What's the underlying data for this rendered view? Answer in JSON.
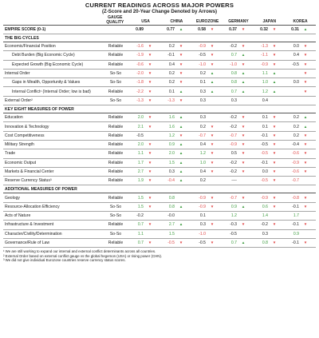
{
  "title": "CURRENT READINGS ACROSS MAJOR POWERS",
  "subtitle": "(Z-Score and 20-Year Change Denoted by Arrows)",
  "columns": {
    "quality": "GAUGE QUALITY",
    "countries": [
      "USA",
      "CHINA",
      "EUROZONE",
      "GERMANY",
      "JAPAN",
      "KOREA"
    ]
  },
  "colors": {
    "positive": "#3c9b3e",
    "negative": "#e04848",
    "flat": "#e8b91c"
  },
  "rows": [
    {
      "kind": "empire",
      "label": "EMPIRE SCORE (0-1)",
      "quality": "",
      "cells": [
        {
          "v": "0.89",
          "t": "neu",
          "a": ""
        },
        {
          "v": "0.77",
          "t": "neu",
          "a": "up"
        },
        {
          "v": "0.58",
          "t": "neu",
          "a": "down"
        },
        {
          "v": "0.37",
          "t": "neu",
          "a": "down"
        },
        {
          "v": "0.32",
          "t": "neu",
          "a": "down"
        },
        {
          "v": "0.31",
          "t": "neu",
          "a": "up"
        }
      ]
    },
    {
      "kind": "section",
      "label": "THE BIG CYCLES"
    },
    {
      "kind": "row",
      "label": "Economic/Financial Position",
      "quality": "Reliable",
      "cells": [
        {
          "v": "-1.6",
          "t": "neg",
          "a": "down"
        },
        {
          "v": "0.2",
          "t": "neu",
          "a": "down"
        },
        {
          "v": "-0.9",
          "t": "neg",
          "a": "down"
        },
        {
          "v": "-0.2",
          "t": "neu",
          "a": "down"
        },
        {
          "v": "-1.3",
          "t": "neg",
          "a": "down"
        },
        {
          "v": "0.0",
          "t": "neu",
          "a": "down"
        }
      ]
    },
    {
      "kind": "row",
      "sub": true,
      "label": "Debt Burden (Big Economic Cycle)",
      "quality": "Reliable",
      "cells": [
        {
          "v": "-1.9",
          "t": "neg",
          "a": "down"
        },
        {
          "v": "-0.1",
          "t": "neu",
          "a": "down"
        },
        {
          "v": "-0.5",
          "t": "neu",
          "a": "down"
        },
        {
          "v": "0.7",
          "t": "pos",
          "a": "up"
        },
        {
          "v": "-1.1",
          "t": "neg",
          "a": "down"
        },
        {
          "v": "0.4",
          "t": "neu",
          "a": "down"
        }
      ]
    },
    {
      "kind": "row",
      "sub": true,
      "label": "Expected Growth (Big Economic Cycle)",
      "quality": "Reliable",
      "cells": [
        {
          "v": "-0.6",
          "t": "neg",
          "a": "down"
        },
        {
          "v": "0.4",
          "t": "neu",
          "a": "down"
        },
        {
          "v": "-1.0",
          "t": "neg",
          "a": "down"
        },
        {
          "v": "-1.0",
          "t": "neg",
          "a": "down"
        },
        {
          "v": "-0.9",
          "t": "neg",
          "a": "down"
        },
        {
          "v": "-0.5",
          "t": "neu",
          "a": "down"
        }
      ]
    },
    {
      "kind": "row",
      "label": "Internal Order",
      "quality": "So-So",
      "cells": [
        {
          "v": "-2.0",
          "t": "neg",
          "a": "down"
        },
        {
          "v": "0.2",
          "t": "neu",
          "a": "down"
        },
        {
          "v": "0.2",
          "t": "neu",
          "a": "up"
        },
        {
          "v": "0.8",
          "t": "pos",
          "a": "up"
        },
        {
          "v": "1.1",
          "t": "pos",
          "a": "up"
        },
        {
          "v": "",
          "t": "neu",
          "a": "down"
        }
      ]
    },
    {
      "kind": "row",
      "sub": true,
      "label": "Gaps in Wealth, Opportunity & Values",
      "quality": "So-So",
      "cells": [
        {
          "v": "-1.8",
          "t": "neg",
          "a": "down"
        },
        {
          "v": "0.2",
          "t": "neu",
          "a": "down"
        },
        {
          "v": "0.1",
          "t": "neu",
          "a": "up"
        },
        {
          "v": "0.8",
          "t": "pos",
          "a": "up"
        },
        {
          "v": "1.0",
          "t": "pos",
          "a": "up"
        },
        {
          "v": "0.0",
          "t": "neu",
          "a": "down"
        }
      ]
    },
    {
      "kind": "row",
      "sub": true,
      "label": "Internal Conflict¹ (Internal Order; low is bad)",
      "quality": "Reliable",
      "cells": [
        {
          "v": "-2.2",
          "t": "neg",
          "a": "down"
        },
        {
          "v": "0.1",
          "t": "neu",
          "a": "up"
        },
        {
          "v": "0.3",
          "t": "neu",
          "a": "up"
        },
        {
          "v": "0.7",
          "t": "pos",
          "a": "up"
        },
        {
          "v": "1.2",
          "t": "pos",
          "a": "up"
        },
        {
          "v": "",
          "t": "neu",
          "a": "down"
        }
      ]
    },
    {
      "kind": "row",
      "label": "External Order²",
      "quality": "So-So",
      "cells": [
        {
          "v": "-1.3",
          "t": "neg",
          "a": "down"
        },
        {
          "v": "-1.3",
          "t": "neg",
          "a": "down"
        },
        {
          "v": "0.3",
          "t": "neu",
          "a": ""
        },
        {
          "v": "0.3",
          "t": "neu",
          "a": ""
        },
        {
          "v": "0.4",
          "t": "neu",
          "a": ""
        },
        {
          "v": "",
          "t": "neu",
          "a": ""
        }
      ]
    },
    {
      "kind": "section",
      "label": "KEY EIGHT MEASURES OF POWER"
    },
    {
      "kind": "row",
      "label": "Education",
      "quality": "Reliable",
      "cells": [
        {
          "v": "2.0",
          "t": "pos",
          "a": "down"
        },
        {
          "v": "1.6",
          "t": "pos",
          "a": "up"
        },
        {
          "v": "0.3",
          "t": "neu",
          "a": ""
        },
        {
          "v": "-0.2",
          "t": "neu",
          "a": "down"
        },
        {
          "v": "0.1",
          "t": "neu",
          "a": "down"
        },
        {
          "v": "0.2",
          "t": "neu",
          "a": "up"
        }
      ]
    },
    {
      "kind": "row",
      "label": "Innovation & Technology",
      "quality": "Reliable",
      "cells": [
        {
          "v": "2.1",
          "t": "pos",
          "a": "down"
        },
        {
          "v": "1.6",
          "t": "pos",
          "a": "up"
        },
        {
          "v": "0.2",
          "t": "neu",
          "a": "down"
        },
        {
          "v": "-0.2",
          "t": "neu",
          "a": "down"
        },
        {
          "v": "0.1",
          "t": "neu",
          "a": "down"
        },
        {
          "v": "0.2",
          "t": "neu",
          "a": "up"
        }
      ]
    },
    {
      "kind": "row",
      "label": "Cost Competitiveness",
      "quality": "Reliable",
      "cells": [
        {
          "v": "-0.5",
          "t": "neu",
          "a": ""
        },
        {
          "v": "1.2",
          "t": "pos",
          "a": "down"
        },
        {
          "v": "-0.7",
          "t": "neg",
          "a": "down"
        },
        {
          "v": "-0.7",
          "t": "neg",
          "a": "down"
        },
        {
          "v": "-0.1",
          "t": "neu",
          "a": "down"
        },
        {
          "v": "0.2",
          "t": "neu",
          "a": "down"
        }
      ]
    },
    {
      "kind": "row",
      "label": "Military Strength",
      "quality": "Reliable",
      "cells": [
        {
          "v": "2.0",
          "t": "pos",
          "a": "down"
        },
        {
          "v": "0.9",
          "t": "pos",
          "a": "up"
        },
        {
          "v": "0.4",
          "t": "neu",
          "a": "down"
        },
        {
          "v": "-0.9",
          "t": "neg",
          "a": "down"
        },
        {
          "v": "-0.5",
          "t": "neu",
          "a": "down"
        },
        {
          "v": "-0.4",
          "t": "neu",
          "a": "down"
        }
      ]
    },
    {
      "kind": "row",
      "label": "Trade",
      "quality": "Reliable",
      "cells": [
        {
          "v": "1.1",
          "t": "pos",
          "a": "down"
        },
        {
          "v": "2.0",
          "t": "pos",
          "a": "up"
        },
        {
          "v": "1.2",
          "t": "pos",
          "a": "down"
        },
        {
          "v": "0.5",
          "t": "neu",
          "a": "down"
        },
        {
          "v": "-0.5",
          "t": "neg",
          "a": "down"
        },
        {
          "v": "-0.6",
          "t": "neg",
          "a": "down"
        }
      ]
    },
    {
      "kind": "row",
      "label": "Economic Output",
      "quality": "Reliable",
      "cells": [
        {
          "v": "1.7",
          "t": "pos",
          "a": "down"
        },
        {
          "v": "1.5",
          "t": "pos",
          "a": "up"
        },
        {
          "v": "1.0",
          "t": "pos",
          "a": "down"
        },
        {
          "v": "-0.2",
          "t": "neu",
          "a": "down"
        },
        {
          "v": "-0.1",
          "t": "neu",
          "a": "down"
        },
        {
          "v": "-0.9",
          "t": "neg",
          "a": "down"
        }
      ]
    },
    {
      "kind": "row",
      "label": "Markets & Financial Center",
      "quality": "Reliable",
      "cells": [
        {
          "v": "2.7",
          "t": "pos",
          "a": "down"
        },
        {
          "v": "0.3",
          "t": "neu",
          "a": "up"
        },
        {
          "v": "0.4",
          "t": "neu",
          "a": "down"
        },
        {
          "v": "-0.2",
          "t": "neu",
          "a": "down"
        },
        {
          "v": "0.0",
          "t": "neu",
          "a": "down"
        },
        {
          "v": "-0.6",
          "t": "neg",
          "a": "down"
        }
      ]
    },
    {
      "kind": "row",
      "label": "Reserve Currency Status³",
      "quality": "Reliable",
      "cells": [
        {
          "v": "1.9",
          "t": "pos",
          "a": "down"
        },
        {
          "v": "-0.4",
          "t": "neg",
          "a": "up"
        },
        {
          "v": "0.2",
          "t": "neu",
          "a": ""
        },
        {
          "v": "----",
          "t": "neu",
          "a": ""
        },
        {
          "v": "-0.5",
          "t": "neg",
          "a": "down"
        },
        {
          "v": "-0.7",
          "t": "neg",
          "a": ""
        }
      ]
    },
    {
      "kind": "section",
      "label": "ADDITIONAL MEASURES OF POWER"
    },
    {
      "kind": "row",
      "label": "Geology",
      "quality": "Reliable",
      "cells": [
        {
          "v": "1.5",
          "t": "pos",
          "a": "down"
        },
        {
          "v": "0.8",
          "t": "pos",
          "a": ""
        },
        {
          "v": "-0.9",
          "t": "neg",
          "a": "down"
        },
        {
          "v": "-0.7",
          "t": "neg",
          "a": "down"
        },
        {
          "v": "-0.9",
          "t": "neg",
          "a": "down"
        },
        {
          "v": "-0.8",
          "t": "neg",
          "a": "down"
        }
      ]
    },
    {
      "kind": "row",
      "label": "Resource-Allocation Efficiency",
      "quality": "So-So",
      "cells": [
        {
          "v": "1.5",
          "t": "pos",
          "a": "down"
        },
        {
          "v": "0.8",
          "t": "pos",
          "a": "up"
        },
        {
          "v": "-0.9",
          "t": "neg",
          "a": "down"
        },
        {
          "v": "0.9",
          "t": "pos",
          "a": "up"
        },
        {
          "v": "0.6",
          "t": "pos",
          "a": "down"
        },
        {
          "v": "-0.1",
          "t": "neu",
          "a": "down"
        }
      ]
    },
    {
      "kind": "row",
      "label": "Acts of Nature",
      "quality": "So-So",
      "cells": [
        {
          "v": "-0.2",
          "t": "neu",
          "a": ""
        },
        {
          "v": "-0.0",
          "t": "neu",
          "a": ""
        },
        {
          "v": "0.1",
          "t": "neu",
          "a": ""
        },
        {
          "v": "1.2",
          "t": "pos",
          "a": ""
        },
        {
          "v": "1.4",
          "t": "pos",
          "a": ""
        },
        {
          "v": "1.7",
          "t": "pos",
          "a": ""
        }
      ]
    },
    {
      "kind": "row",
      "label": "Infrastructure & Investment",
      "quality": "Reliable",
      "cells": [
        {
          "v": "0.7",
          "t": "pos",
          "a": "down"
        },
        {
          "v": "2.7",
          "t": "pos",
          "a": "up"
        },
        {
          "v": "0.3",
          "t": "neu",
          "a": "down"
        },
        {
          "v": "-0.3",
          "t": "neu",
          "a": "down"
        },
        {
          "v": "-0.2",
          "t": "neu",
          "a": "down"
        },
        {
          "v": "-0.1",
          "t": "neu",
          "a": "down"
        }
      ]
    },
    {
      "kind": "row",
      "label": "Character/Civility/Determination",
      "quality": "So-So",
      "cells": [
        {
          "v": "1.1",
          "t": "pos",
          "a": ""
        },
        {
          "v": "1.5",
          "t": "pos",
          "a": ""
        },
        {
          "v": "-1.0",
          "t": "neg",
          "a": ""
        },
        {
          "v": "-0.5",
          "t": "neu",
          "a": ""
        },
        {
          "v": "0.3",
          "t": "neu",
          "a": ""
        },
        {
          "v": "0.9",
          "t": "pos",
          "a": ""
        }
      ]
    },
    {
      "kind": "row",
      "label": "Governance/Rule of Law",
      "quality": "Reliable",
      "cells": [
        {
          "v": "0.7",
          "t": "pos",
          "a": "down"
        },
        {
          "v": "-0.5",
          "t": "neg",
          "a": "down"
        },
        {
          "v": "-0.5",
          "t": "neu",
          "a": "down"
        },
        {
          "v": "0.7",
          "t": "pos",
          "a": "up"
        },
        {
          "v": "0.8",
          "t": "pos",
          "a": "down"
        },
        {
          "v": "-0.1",
          "t": "neu",
          "a": "down"
        }
      ]
    }
  ],
  "notes": [
    "¹ We are still working to expand our internal and external conflict determinants across all countries.",
    "² External Order based on external conflict gauge vs the global hegemon (USA) or rising power (CHN).",
    "³ We did not give individual Eurozone countries reserve currency status scores."
  ]
}
